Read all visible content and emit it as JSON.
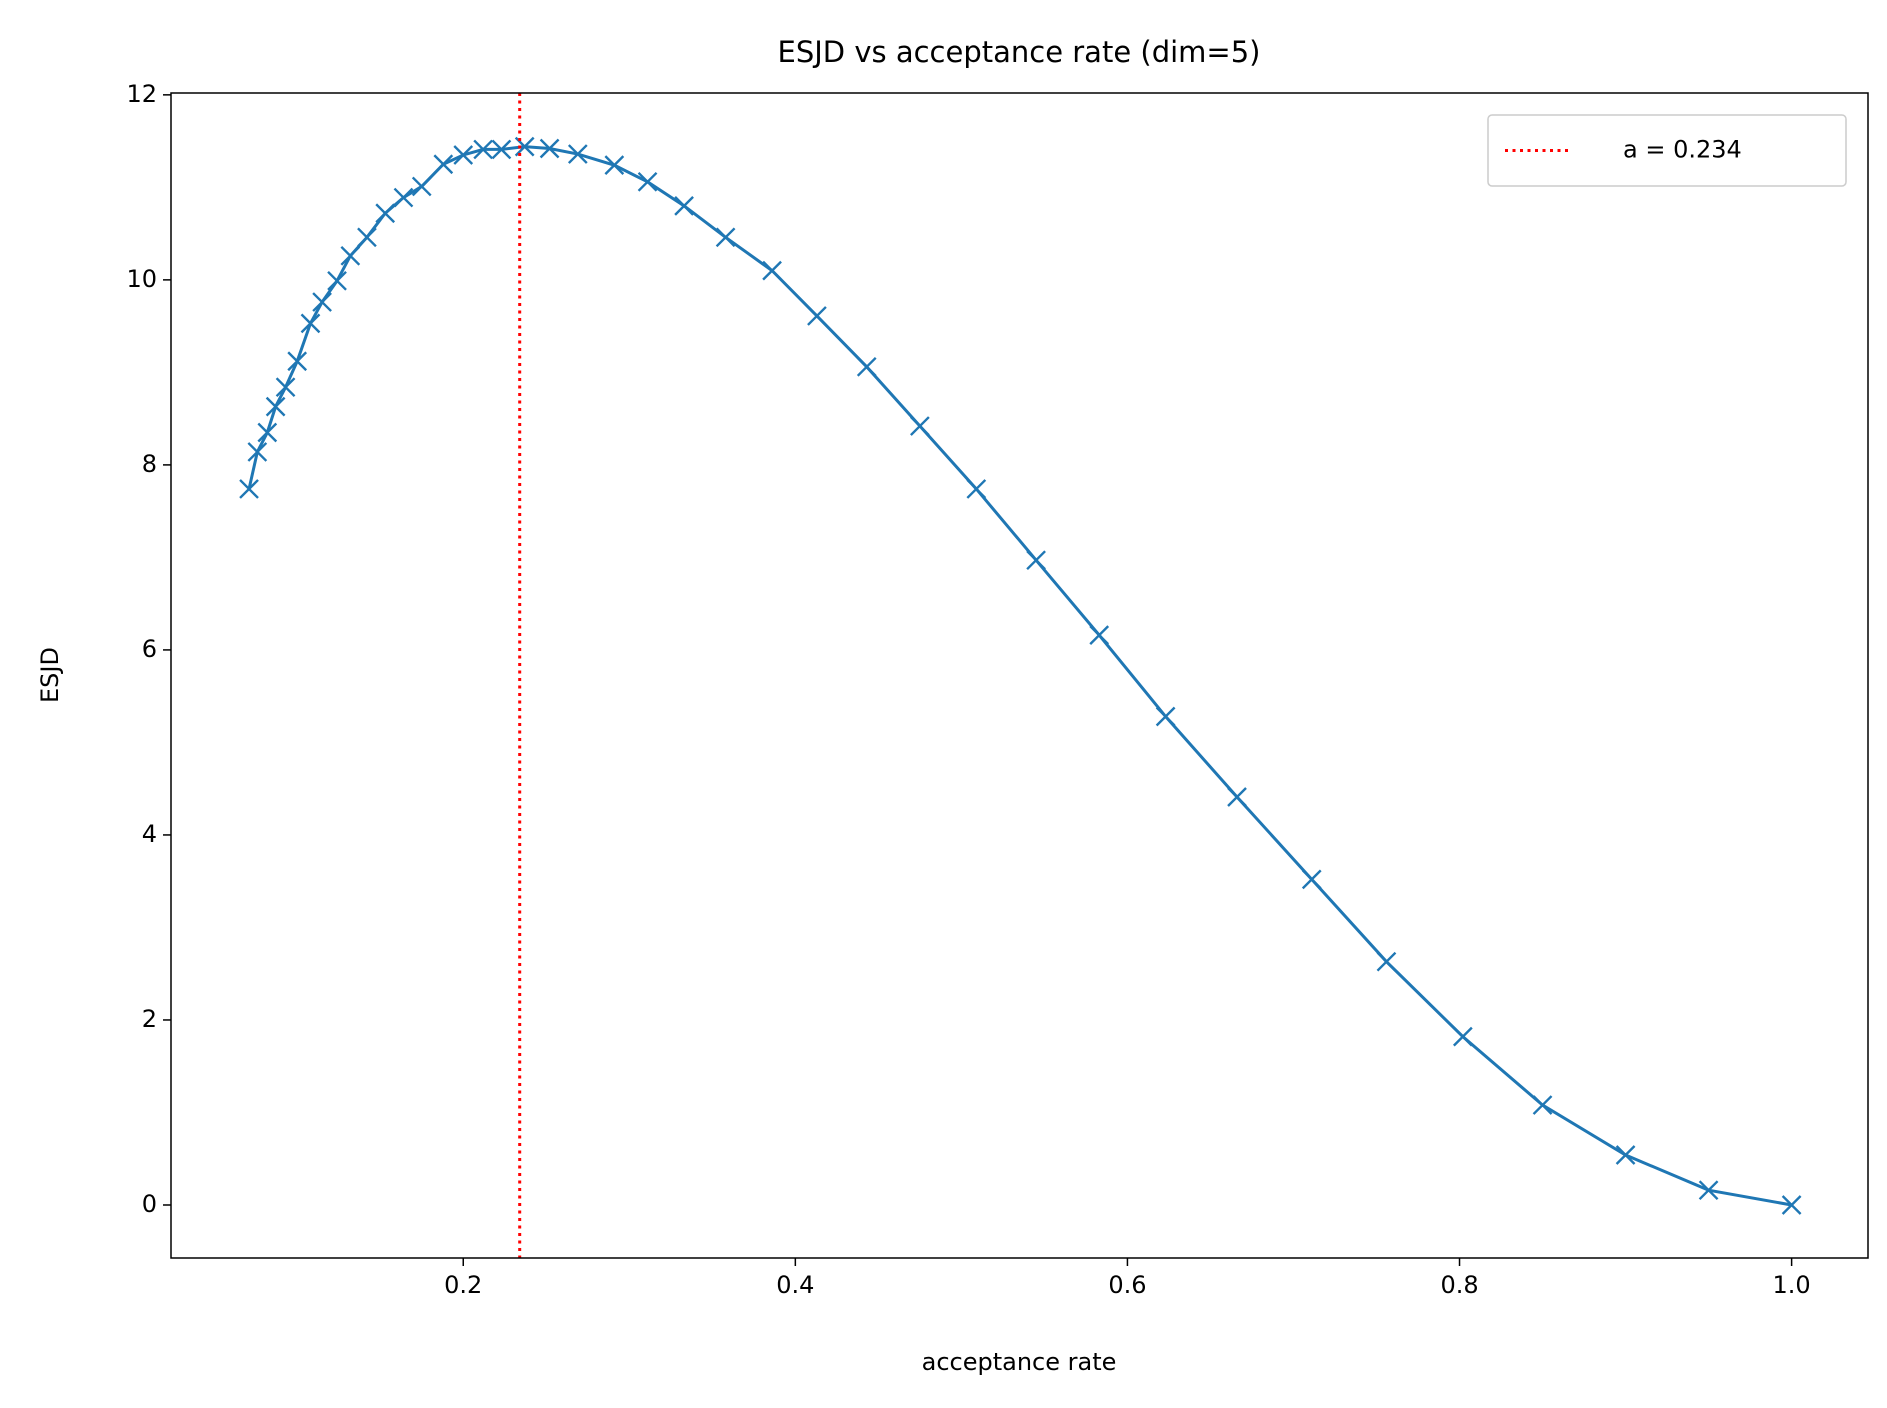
{
  "chart_data": {
    "type": "line",
    "title": "ESJD vs acceptance rate (dim=5)",
    "x_label": "acceptance rate",
    "y_label": "ESJD",
    "x": [
      0.071,
      0.076,
      0.082,
      0.087,
      0.093,
      0.1,
      0.108,
      0.115,
      0.124,
      0.132,
      0.142,
      0.153,
      0.164,
      0.175,
      0.188,
      0.2,
      0.212,
      0.223,
      0.237,
      0.252,
      0.269,
      0.291,
      0.311,
      0.333,
      0.358,
      0.386,
      0.413,
      0.443,
      0.475,
      0.509,
      0.545,
      0.583,
      0.623,
      0.666,
      0.711,
      0.756,
      0.802,
      0.85,
      0.9,
      0.95,
      1.0
    ],
    "series": [
      {
        "color": "#1f77b4",
        "marker": "x",
        "values": [
          7.74,
          8.14,
          8.35,
          8.63,
          8.84,
          9.12,
          9.53,
          9.76,
          9.99,
          10.26,
          10.46,
          10.72,
          10.89,
          11.01,
          11.25,
          11.35,
          11.41,
          11.41,
          11.44,
          11.42,
          11.36,
          11.24,
          11.06,
          10.8,
          10.46,
          10.1,
          9.61,
          9.06,
          8.42,
          7.74,
          6.97,
          6.16,
          5.28,
          4.41,
          3.52,
          2.63,
          1.82,
          1.08,
          0.54,
          0.16,
          0.0
        ]
      }
    ],
    "vline": {
      "value": 0.234,
      "label": "a = 0.234",
      "color": "#ff0000",
      "style": "dotted"
    },
    "legend": "upper right",
    "xlim": [
      0.024,
      1.046
    ],
    "ylim": [
      -0.573,
      12.02
    ],
    "xticks": [
      0.2,
      0.4,
      0.6,
      0.8,
      {
        "value": 1,
        "label": "1.0"
      }
    ],
    "yticks": [
      0,
      2,
      4,
      6,
      8,
      10,
      12
    ]
  }
}
